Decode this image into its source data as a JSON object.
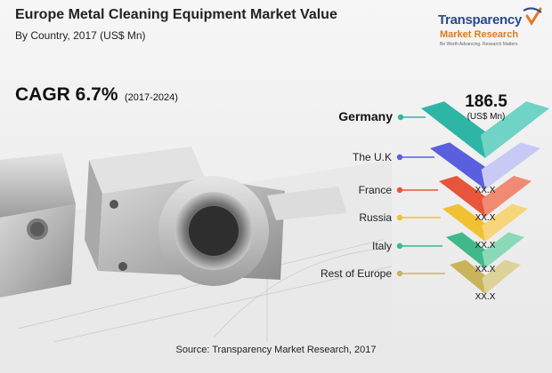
{
  "header": {
    "title": "Europe Metal Cleaning Equipment Market Value",
    "subtitle": "By Country, 2017 (US$ Mn)"
  },
  "cagr": {
    "label": "CAGR 6.7%",
    "period": "(2017-2024)"
  },
  "logo": {
    "line1": "Transparency",
    "line2": "Market Research",
    "line3": "Be Worth Advancing. Research Matters",
    "icon": "check-swoosh-icon"
  },
  "source": "Source: Transparency Market Research, 2017",
  "chart_data": {
    "type": "infographic-ranked-chevrons",
    "title": "Europe Metal Cleaning Equipment Market Value",
    "subtitle": "By Country, 2017 (US$ Mn)",
    "categories": [
      "Germany",
      "The U.K",
      "France",
      "Russia",
      "Italy",
      "Rest of Europe"
    ],
    "value_labels": [
      "",
      "",
      "XX.X",
      "XX.X",
      "XX.X",
      "XX.X"
    ],
    "highlight": {
      "category": "Germany",
      "value": "186.5",
      "unit": "(US$ Mn)"
    },
    "colors": [
      "#2fb5a6",
      "#5a5fe0",
      "#e8553a",
      "#f0c233",
      "#3fb98a",
      "#c9b45a"
    ],
    "light_colors": [
      "#6fd3c6",
      "#c9c9f5",
      "#f08a72",
      "#f7d57a",
      "#8ad9b8",
      "#ddd29a"
    ]
  }
}
